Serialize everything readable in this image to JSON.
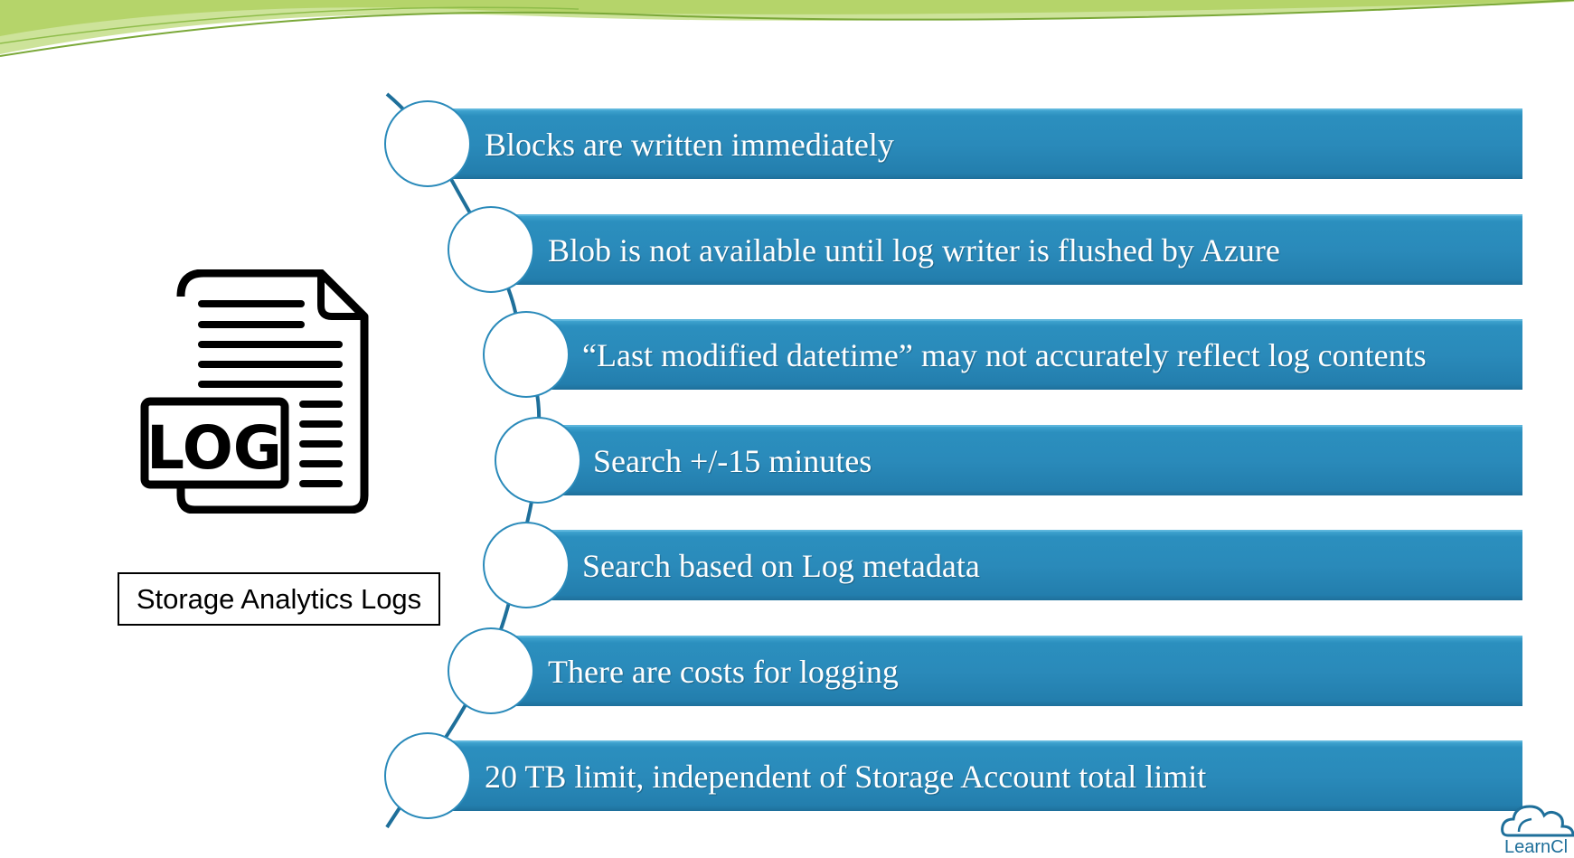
{
  "caption": "Storage Analytics Logs",
  "log_icon_text": "LOG",
  "brand": "LearnCl",
  "items": [
    "Blocks are written immediately",
    "Blob is not available until log writer is flushed by Azure",
    "“Last modified datetime” may not accurately reflect log contents",
    "Search +/-15 minutes",
    "Search based on Log metadata",
    "There are costs for logging",
    "20 TB limit, independent of Storage Account total limit"
  ],
  "colors": {
    "bar": "#2a8aba",
    "swoosh": "#a8cf4c",
    "circle_border": "#2a8aba"
  }
}
